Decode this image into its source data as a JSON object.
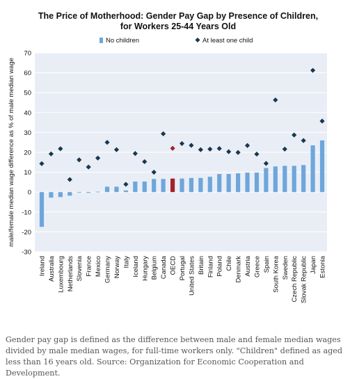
{
  "chart_data": {
    "type": "bar",
    "title_line1": "The Price of Motherhood: Gender Pay Gap by Presence of Children,",
    "title_line2": "for Workers 25-44 Years Old",
    "ylabel": "male/female median wage difference as % of male median wage",
    "xlabel": "",
    "ylim": [
      -30,
      70
    ],
    "yticks": [
      -30,
      -20,
      -10,
      0,
      10,
      20,
      30,
      40,
      50,
      60,
      70
    ],
    "grid": true,
    "legend_placement": "top-center",
    "categories": [
      "Ireland",
      "Australia",
      "Luxembourg",
      "Netherlands",
      "Slovenia",
      "France",
      "Mexico",
      "Germany",
      "Norway",
      "Italy",
      "Iceland",
      "Hungary",
      "Belgium",
      "Canada",
      "OECD",
      "Portugal",
      "United States",
      "Britain",
      "Finland",
      "Poland",
      "Chile",
      "Denmark",
      "Austria",
      "Greece",
      "Spain",
      "South Korea",
      "Sweden",
      "Czech Republic",
      "Slovak Republic",
      "Japan",
      "Estonia"
    ],
    "series": [
      {
        "name": "No children",
        "style": "bar",
        "values": [
          -17.5,
          -2.8,
          -2.5,
          -1.8,
          -0.3,
          -0.4,
          0.2,
          2.7,
          2.7,
          0.8,
          5.3,
          5.3,
          6.6,
          6.6,
          6.8,
          6.8,
          7.1,
          7.1,
          7.7,
          9.1,
          9.1,
          9.4,
          9.8,
          9.8,
          12.1,
          12.9,
          13.2,
          13.2,
          13.6,
          23.5,
          26.0
        ]
      },
      {
        "name": "At least one child",
        "style": "diamond",
        "values": [
          14.3,
          19.2,
          21.8,
          6.3,
          16.2,
          12.6,
          17.1,
          25.0,
          21.3,
          3.9,
          19.4,
          15.3,
          10.0,
          29.3,
          22.0,
          24.4,
          23.5,
          21.3,
          21.6,
          21.9,
          20.3,
          19.9,
          23.4,
          19.1,
          14.4,
          46.3,
          21.6,
          28.7,
          25.9,
          61.2,
          35.7
        ]
      }
    ],
    "highlight_category": "OECD"
  },
  "colors": {
    "plot_background": "#e9eef6",
    "grid": "#ffffff",
    "bar": "#6ea6dc",
    "bar_highlight": "#a4222a",
    "diamond": "#18384f",
    "diamond_highlight": "#a4222a",
    "text": "#111111",
    "caption": "#555555"
  },
  "caption": "Gender pay gap is defined as the difference between male and female median wages divided by male median wages, for full-time workers only. \"Children\" defined as aged less than 16 years old. Source: Organization for Economic Cooperation and Development."
}
